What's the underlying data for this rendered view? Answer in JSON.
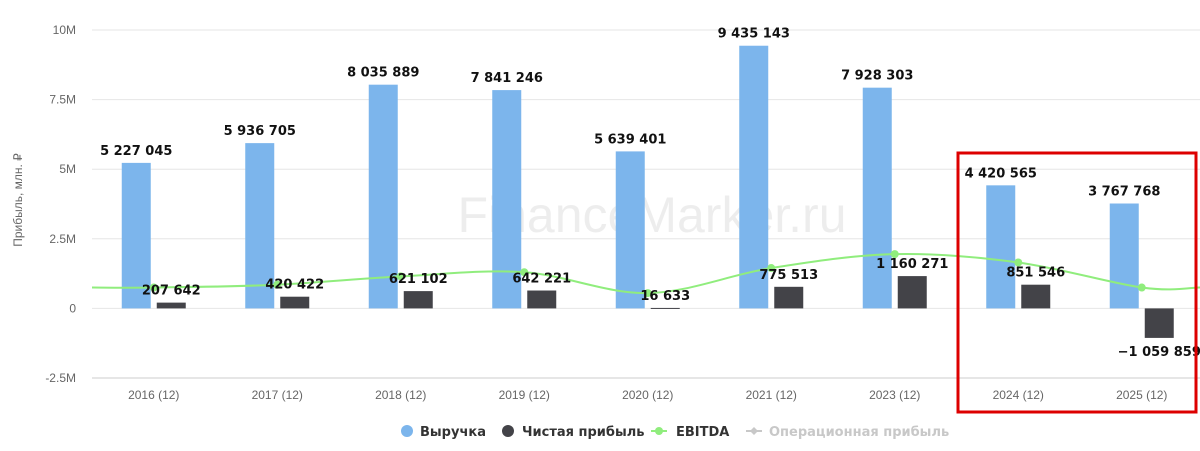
{
  "watermark": "FinanceMarker.ru",
  "chart_data": {
    "type": "bar",
    "categories": [
      "2016 (12)",
      "2017 (12)",
      "2018 (12)",
      "2019 (12)",
      "2020 (12)",
      "2021 (12)",
      "2023 (12)",
      "2024 (12)",
      "2025 (12)"
    ],
    "ylabel": "Прибыль, млн. ₽",
    "ylim": [
      -2500000,
      10000000
    ],
    "y_ticks": [
      -2500000,
      0,
      2500000,
      5000000,
      7500000,
      10000000
    ],
    "y_tick_labels": [
      "-2.5M",
      "0",
      "2.5M",
      "5M",
      "7.5M",
      "10M"
    ],
    "grid": "horizontal",
    "legend_position": "bottom-center",
    "series": [
      {
        "name": "Выручка",
        "kind": "bar",
        "color": "#7cb5ec",
        "values": [
          5227045,
          5936705,
          8035889,
          7841246,
          5639401,
          9435143,
          7928303,
          4420565,
          3767768
        ],
        "labels": [
          "5 227 045",
          "5 936 705",
          "8 035 889",
          "7 841 246",
          "5 639 401",
          "9 435 143",
          "7 928 303",
          "4 420 565",
          "3 767 768"
        ]
      },
      {
        "name": "Чистая прибыль",
        "kind": "bar",
        "color": "#434348",
        "values": [
          207642,
          420422,
          621102,
          642221,
          16633,
          775513,
          1160271,
          851546,
          -1059859
        ],
        "labels": [
          "207 642",
          "420 422",
          "621 102",
          "642 221",
          "16 633",
          "775 513",
          "1 160 271",
          "851 546",
          "−1 059 859"
        ]
      },
      {
        "name": "EBITDA",
        "kind": "line",
        "color": "#90ed7d",
        "values": [
          750000,
          850000,
          1150000,
          1300000,
          550000,
          1450000,
          1950000,
          1650000,
          750000
        ]
      },
      {
        "name": "Операционная прибыль",
        "kind": "line",
        "color": "#c8c8c8",
        "hidden": true
      }
    ],
    "highlight": {
      "categories": [
        "2024 (12)",
        "2025 (12)"
      ],
      "color": "#dd0000"
    }
  }
}
